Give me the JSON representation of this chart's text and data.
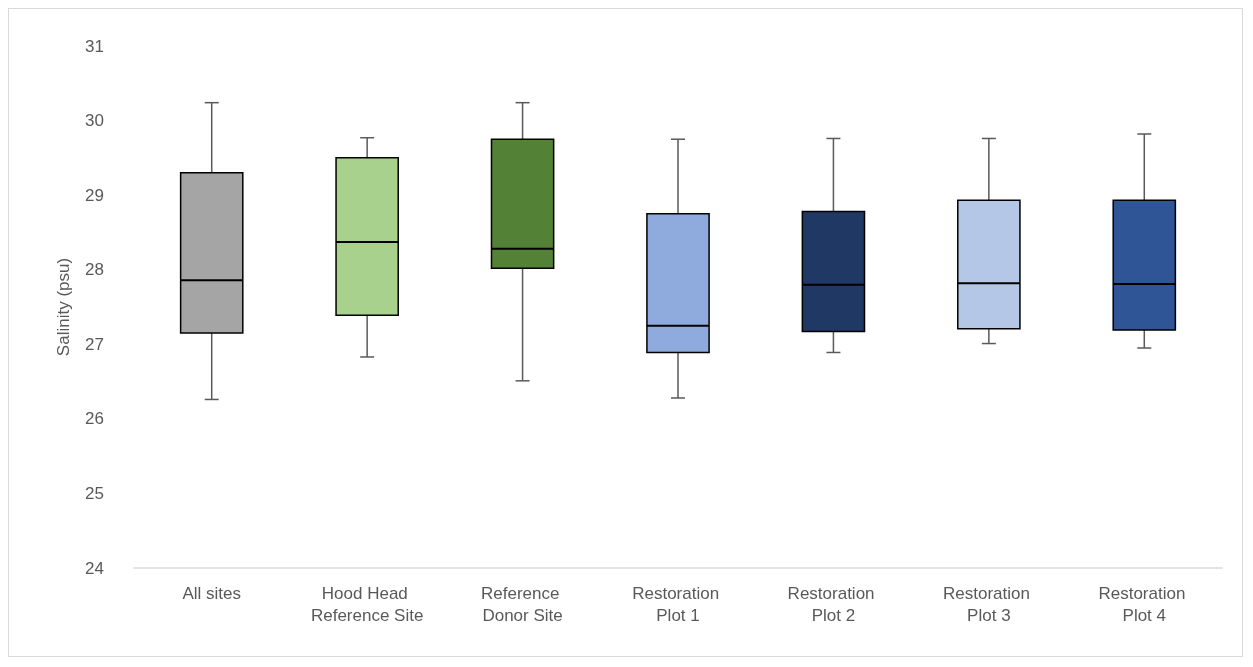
{
  "chart_data": {
    "type": "box",
    "ylabel": "Salinity (psu)",
    "categories": [
      "All sites",
      "Hood Head Reference Site",
      "Reference Donor Site",
      "Restoration Plot 1",
      "Restoration Plot 2",
      "Restoration Plot 3",
      "Restoration Plot 4"
    ],
    "colors": [
      "#a5a5a5",
      "#a9d18e",
      "#538135",
      "#8faadc",
      "#203864",
      "#b4c7e7",
      "#2f5597"
    ],
    "boxes": [
      {
        "low": 26.26,
        "q1": 27.15,
        "median": 27.86,
        "q3": 29.3,
        "high": 30.24
      },
      {
        "low": 26.83,
        "q1": 27.39,
        "median": 28.37,
        "q3": 29.5,
        "high": 29.77
      },
      {
        "low": 26.51,
        "q1": 28.02,
        "median": 28.28,
        "q3": 29.75,
        "high": 30.24
      },
      {
        "low": 26.28,
        "q1": 26.89,
        "median": 27.25,
        "q3": 28.75,
        "high": 29.75
      },
      {
        "low": 26.89,
        "q1": 27.17,
        "median": 27.8,
        "q3": 28.78,
        "high": 29.76
      },
      {
        "low": 27.01,
        "q1": 27.21,
        "median": 27.82,
        "q3": 28.93,
        "high": 29.76
      },
      {
        "low": 26.95,
        "q1": 27.19,
        "median": 27.81,
        "q3": 28.93,
        "high": 29.82
      }
    ],
    "ylim": [
      24,
      31
    ],
    "yticks": [
      24,
      25,
      26,
      27,
      28,
      29,
      30,
      31
    ],
    "grid": false
  }
}
